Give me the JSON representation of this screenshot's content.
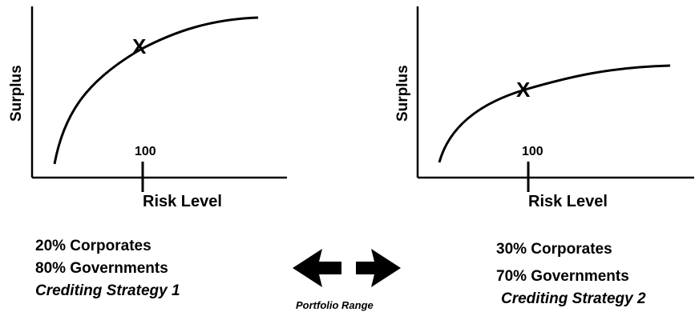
{
  "left_panel": {
    "y_label": "Surplus",
    "x_label": "Risk Level",
    "tick_label": "100",
    "marker": "X",
    "mix": [
      "20% Corporates",
      "80% Governments"
    ],
    "strategy": "Crediting Strategy 1"
  },
  "right_panel": {
    "y_label": "Surplus",
    "x_label": "Risk Level",
    "tick_label": "100",
    "marker": "X",
    "mix": [
      "30% Corporates",
      "70% Governments"
    ],
    "strategy": "Crediting Strategy 2"
  },
  "center": {
    "range_label": "Portfolio Range"
  }
}
